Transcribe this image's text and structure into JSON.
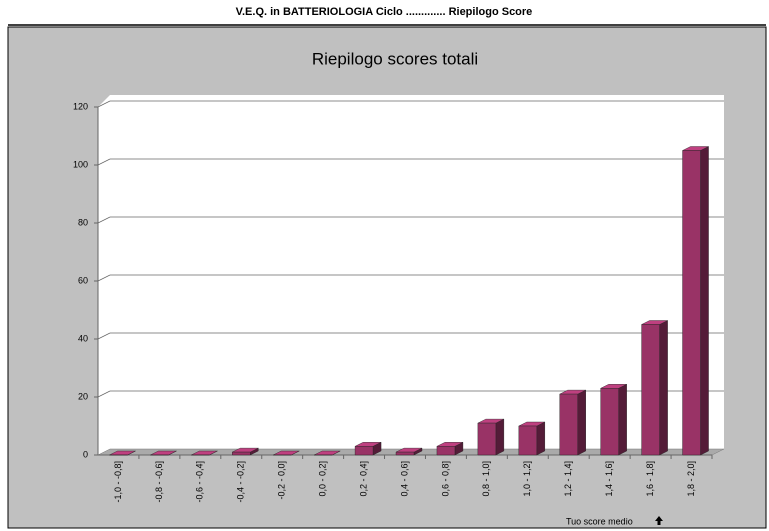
{
  "header": {
    "title": "V.E.Q. in BATTERIOLOGIA Ciclo ............. Riepilogo Score"
  },
  "chart_data": {
    "type": "bar3d",
    "title": "Riepilogo scores totali",
    "categories": [
      "-1,0 - -0,8]",
      "-0,8 - -0,6]",
      "-0,6 - -0,4]",
      "-0,4 - -0,2]",
      "-0,2 - 0,0]",
      "0,0 - 0,2]",
      "0,2 - 0,4]",
      "0,4 - 0,6]",
      "0,6 - 0,8]",
      "0,8 - 1,0]",
      "1,0 - 1,2]",
      "1,2 - 1,4]",
      "1,4 - 1,6]",
      "1,6 - 1,8]",
      "1,8 - 2,0]"
    ],
    "values": [
      0,
      0,
      0,
      1,
      0,
      0,
      3,
      1,
      3,
      11,
      10,
      21,
      23,
      45,
      105
    ],
    "color": "#993366",
    "ylim": [
      0,
      120
    ],
    "yticks": [
      0,
      20,
      40,
      60,
      80,
      100,
      120
    ],
    "grid": true,
    "annotation": "Tuo score medio"
  }
}
